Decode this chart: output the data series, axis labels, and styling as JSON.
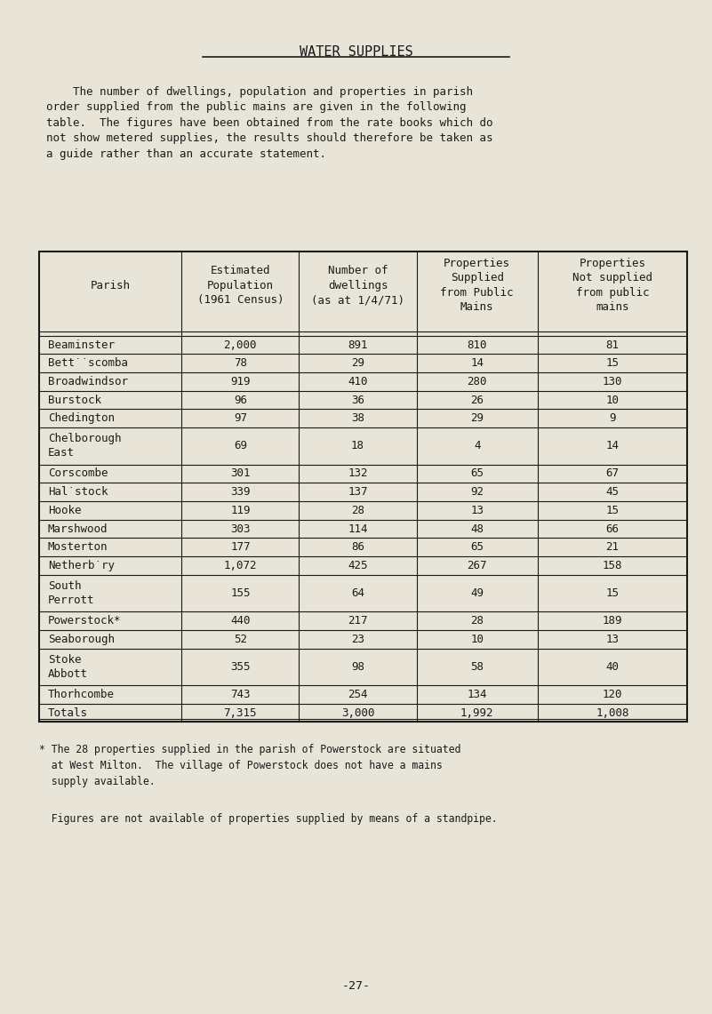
{
  "title": "WATER SUPPLIES",
  "intro_text": "    The number of dwellings, population and properties in parish\norder supplied from the public mains are given in the following\ntable.  The figures have been obtained from the rate books which do\nnot show metered supplies, the results should therefore be taken as\na guide rather than an accurate statement.",
  "col_headers": [
    "Parish",
    "Estimated\nPopulation\n(1961 Census)",
    "Number of\ndwellings\n(as at 1/4/71)",
    "Properties\nSupplied\nfrom Public\nMains",
    "Properties\nNot supplied\nfrom public\nmains"
  ],
  "rows": [
    [
      "Beaminster",
      "2,000",
      "891",
      "810",
      "81"
    ],
    [
      "Betṫ̇scomba",
      "78",
      "29",
      "14",
      "15"
    ],
    [
      "Broadwindsor",
      "919",
      "410",
      "280",
      "130"
    ],
    [
      "Burstock",
      "96",
      "36",
      "26",
      "10"
    ],
    [
      "Chedington",
      "97",
      "38",
      "29",
      "9"
    ],
    [
      "Chelborough\nEast",
      "69",
      "18",
      "4",
      "14"
    ],
    [
      "Corscombe",
      "301",
      "132",
      "65",
      "67"
    ],
    [
      "Hal̇stock",
      "339",
      "137",
      "92",
      "45"
    ],
    [
      "Hooke",
      "119",
      "28",
      "13",
      "15"
    ],
    [
      "Marshwood",
      "303",
      "114",
      "48",
      "66"
    ],
    [
      "Mosterton",
      "177",
      "86",
      "65",
      "21"
    ],
    [
      "Netherḃry",
      "1,072",
      "425",
      "267",
      "158"
    ],
    [
      "South\nPerrott",
      "155",
      "64",
      "49",
      "15"
    ],
    [
      "Powerstock*",
      "440",
      "217",
      "28",
      "189"
    ],
    [
      "Seaborough",
      "52",
      "23",
      "10",
      "13"
    ],
    [
      "Stoke\nAbbott",
      "355",
      "98",
      "58",
      "40"
    ],
    [
      "Thorhcombe",
      "743",
      "254",
      "134",
      "120"
    ],
    [
      "Totals",
      "7,315",
      "3,000",
      "1,992",
      "1,008"
    ]
  ],
  "footnote1": "* The 28 properties supplied in the parish of Powerstock are situated\n  at West Milton.  The village of Powerstock does not have a mains\n  supply available.",
  "footnote2": "  Figures are not available of properties supplied by means of a standpipe.",
  "page_number": "-27-",
  "bg_color": "#e8e4d8",
  "text_color": "#1a1a1a",
  "font_size": 9.5,
  "title_font_size": 11
}
